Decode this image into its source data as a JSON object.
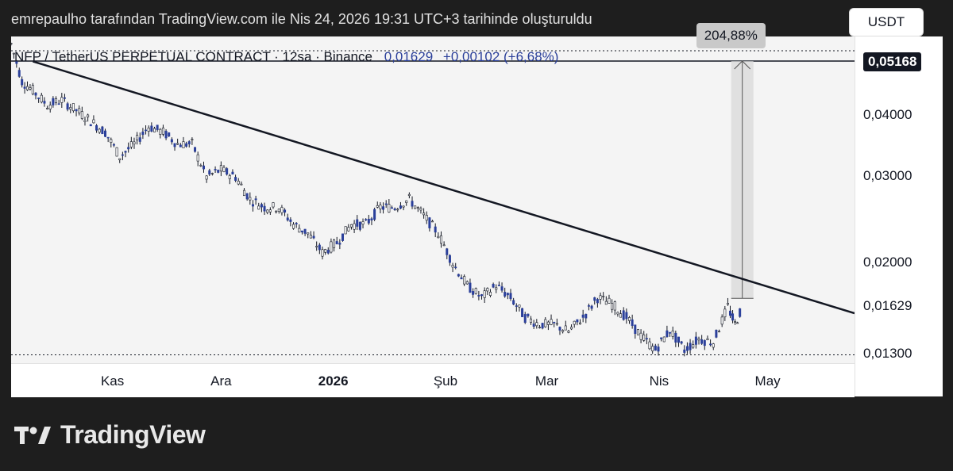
{
  "caption": "emrepaulho tarafından TradingView.com ile Nis 24, 2026 19:31 UTC+3 tarihinde oluşturuldu",
  "legend": {
    "symbol": "NFP / TetherUS PERPETUAL CONTRACT · 12sa · Binance",
    "last": "0,01629",
    "change": "+0,00102 (+6,68%)"
  },
  "currency": "USDT",
  "measure_label": "204,88%",
  "brand": "TradingView",
  "colors": {
    "candle": "#2a3f9a",
    "trendline": "#131722",
    "background": "#f4f4f4",
    "measure": "#d7d7d7"
  },
  "chart_data": {
    "type": "line",
    "scale": "log",
    "y_axis_labels": [
      {
        "value": 0.05168,
        "label": "0,05168",
        "highlight": true
      },
      {
        "value": 0.04,
        "label": "0,04000"
      },
      {
        "value": 0.03,
        "label": "0,03000"
      },
      {
        "value": 0.02,
        "label": "0,02000"
      },
      {
        "value": 0.01629,
        "label": "0,01629"
      },
      {
        "value": 0.013,
        "label": "0,01300"
      }
    ],
    "x_axis_labels": [
      {
        "date": "2025-11-01",
        "label": "Kas"
      },
      {
        "date": "2025-12-01",
        "label": "Ara"
      },
      {
        "date": "2026-01-01",
        "label": "2026",
        "bold": true
      },
      {
        "date": "2026-02-01",
        "label": "Şub"
      },
      {
        "date": "2026-03-01",
        "label": "Mar"
      },
      {
        "date": "2026-04-01",
        "label": "Nis"
      },
      {
        "date": "2026-05-01",
        "label": "May"
      }
    ],
    "x_range": [
      "2025-10-04",
      "2026-05-25"
    ],
    "y_range": [
      0.0125,
      0.058
    ],
    "price_series": {
      "name": "NFP / TetherUS",
      "points": [
        [
          "2025-10-04",
          0.056
        ],
        [
          "2025-10-07",
          0.047
        ],
        [
          "2025-10-10",
          0.045
        ],
        [
          "2025-10-14",
          0.042
        ],
        [
          "2025-10-18",
          0.043
        ],
        [
          "2025-10-22",
          0.041
        ],
        [
          "2025-10-26",
          0.039
        ],
        [
          "2025-10-30",
          0.037
        ],
        [
          "2025-11-03",
          0.033
        ],
        [
          "2025-11-07",
          0.035
        ],
        [
          "2025-11-11",
          0.038
        ],
        [
          "2025-11-15",
          0.037
        ],
        [
          "2025-11-19",
          0.035
        ],
        [
          "2025-11-23",
          0.035
        ],
        [
          "2025-11-27",
          0.03
        ],
        [
          "2025-12-01",
          0.031
        ],
        [
          "2025-12-05",
          0.03
        ],
        [
          "2025-12-09",
          0.027
        ],
        [
          "2025-12-13",
          0.026
        ],
        [
          "2025-12-17",
          0.026
        ],
        [
          "2025-12-21",
          0.024
        ],
        [
          "2025-12-25",
          0.023
        ],
        [
          "2025-12-29",
          0.021
        ],
        [
          "2026-01-02",
          0.022
        ],
        [
          "2026-01-06",
          0.024
        ],
        [
          "2026-01-10",
          0.024
        ],
        [
          "2026-01-14",
          0.026
        ],
        [
          "2026-01-18",
          0.026
        ],
        [
          "2026-01-22",
          0.027
        ],
        [
          "2026-01-26",
          0.025
        ],
        [
          "2026-01-30",
          0.023
        ],
        [
          "2026-02-03",
          0.02
        ],
        [
          "2026-02-07",
          0.018
        ],
        [
          "2026-02-11",
          0.017
        ],
        [
          "2026-02-15",
          0.018
        ],
        [
          "2026-02-19",
          0.017
        ],
        [
          "2026-02-23",
          0.0155
        ],
        [
          "2026-02-27",
          0.015
        ],
        [
          "2026-03-03",
          0.015
        ],
        [
          "2026-03-07",
          0.0145
        ],
        [
          "2026-03-11",
          0.0155
        ],
        [
          "2026-03-15",
          0.017
        ],
        [
          "2026-03-19",
          0.0165
        ],
        [
          "2026-03-23",
          0.0155
        ],
        [
          "2026-03-27",
          0.0142
        ],
        [
          "2026-03-31",
          0.0133
        ],
        [
          "2026-04-04",
          0.0146
        ],
        [
          "2026-04-08",
          0.0133
        ],
        [
          "2026-04-12",
          0.014
        ],
        [
          "2026-04-16",
          0.0138
        ],
        [
          "2026-04-20",
          0.0163
        ],
        [
          "2026-04-22",
          0.015
        ],
        [
          "2026-04-24",
          0.01629
        ]
      ]
    },
    "trendline": {
      "start": [
        "2025-10-10",
        0.0516
      ],
      "end": [
        "2026-05-25",
        0.0158
      ]
    },
    "levels": [
      {
        "value": 0.05168,
        "style": "solid"
      },
      {
        "value": 0.013,
        "style": "dotted"
      }
    ],
    "measure": {
      "date": "2026-04-24",
      "from": 0.01695,
      "to": 0.05168,
      "label": "204,88%"
    }
  }
}
